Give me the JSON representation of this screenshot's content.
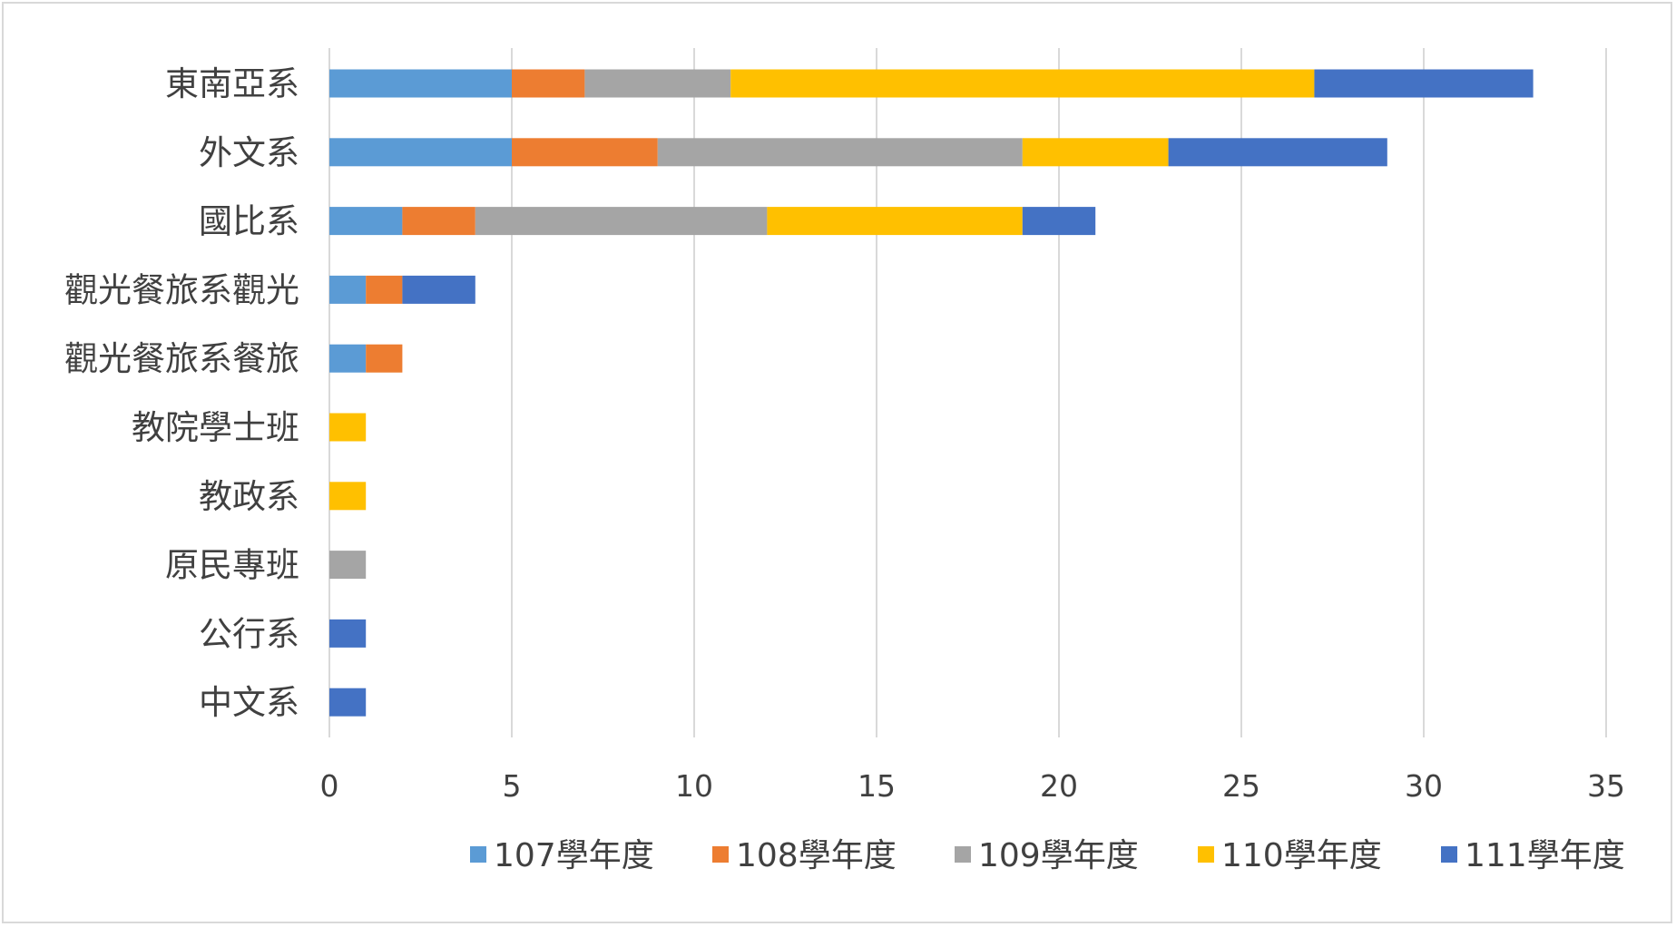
{
  "chart_data": {
    "type": "bar",
    "orientation": "horizontal",
    "stacked": true,
    "categories": [
      "東南亞系",
      "外文系",
      "國比系",
      "觀光餐旅系觀光",
      "觀光餐旅系餐旅",
      "教院學士班",
      "教政系",
      "原民專班",
      "公行系",
      "中文系"
    ],
    "series": [
      {
        "name": "107學年度",
        "color": "#5B9BD5",
        "values": [
          5,
          5,
          2,
          1,
          1,
          0,
          0,
          0,
          0,
          0
        ]
      },
      {
        "name": "108學年度",
        "color": "#ED7D31",
        "values": [
          2,
          4,
          2,
          1,
          1,
          0,
          0,
          0,
          0,
          0
        ]
      },
      {
        "name": "109學年度",
        "color": "#A5A5A5",
        "values": [
          4,
          10,
          8,
          0,
          0,
          0,
          0,
          1,
          0,
          0
        ]
      },
      {
        "name": "110學年度",
        "color": "#FFC000",
        "values": [
          16,
          4,
          7,
          0,
          0,
          1,
          1,
          0,
          0,
          0
        ]
      },
      {
        "name": "111學年度",
        "color": "#4472C4",
        "values": [
          6,
          6,
          2,
          2,
          0,
          0,
          0,
          0,
          1,
          1
        ]
      }
    ],
    "xlim": [
      0,
      35
    ],
    "xticks": [
      "0",
      "5",
      "10",
      "15",
      "20",
      "25",
      "30",
      "35"
    ],
    "grid": "vertical",
    "legend": "bottom",
    "title": "",
    "xlabel": "",
    "ylabel": ""
  }
}
